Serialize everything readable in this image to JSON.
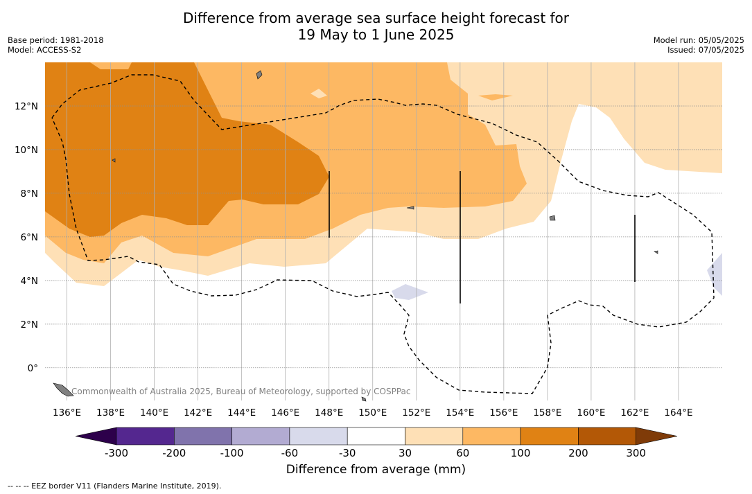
{
  "title_line1": "Difference from average sea surface height forecast for",
  "title_line2": "19 May to 1 June 2025",
  "base_period": "Base period: 1981-2018",
  "model": "Model: ACCESS-S2",
  "model_run": "Model run: 05/05/2025",
  "issued": "Issued: 07/05/2025",
  "copyright": "Commonwealth of Australia 2025, Bureau of Meteorology, supported by COSPPac",
  "footnote": "--  --  -- EEZ border V11 (Flanders Marine Institute, 2019).",
  "map": {
    "lon_labels": [
      "136°E",
      "138°E",
      "140°E",
      "142°E",
      "144°E",
      "146°E",
      "148°E",
      "150°E",
      "152°E",
      "154°E",
      "156°E",
      "158°E",
      "160°E",
      "162°E",
      "164°E"
    ],
    "lat_labels": [
      "12°N",
      "10°N",
      "8°N",
      "6°N",
      "4°N",
      "2°N",
      "0°"
    ],
    "lon_range": [
      135.0,
      166.0
    ],
    "lat_range": [
      -1.5,
      14.0
    ]
  },
  "colorbar": {
    "title": "Difference from average (mm)",
    "tick_labels": [
      "-300",
      "-200",
      "-100",
      "-60",
      "-30",
      "30",
      "60",
      "100",
      "200",
      "300"
    ],
    "colors": [
      "#54278f",
      "#8073ac",
      "#b2abd2",
      "#d8daeb",
      "#ffffff",
      "#fee0b6",
      "#fdb863",
      "#e08214",
      "#b35806"
    ],
    "under_color": "#2d004b",
    "over_color": "#7f3b08"
  },
  "legend_colors": {
    "level_30_60": "#fee0b6",
    "level_60_100": "#fdb863",
    "level_100_200": "#e08214",
    "level_neg30_neg60": "#d8daeb"
  }
}
